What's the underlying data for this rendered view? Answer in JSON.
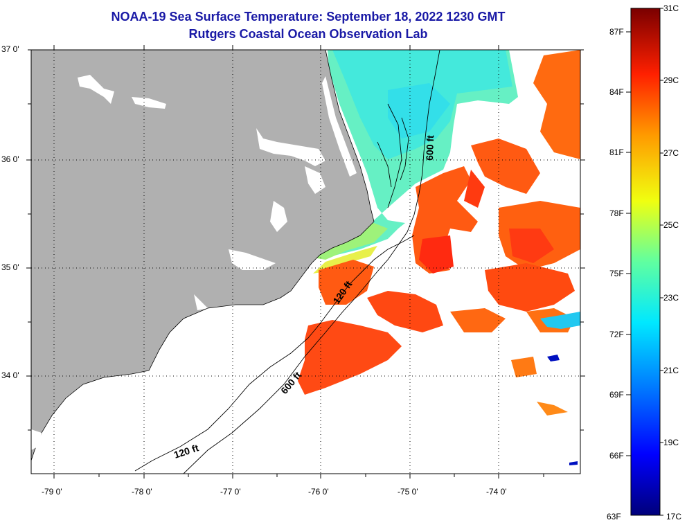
{
  "title": {
    "line1": "NOAA-19 Sea Surface Temperature:  September 18, 2022 1230 GMT",
    "line2": "Rutgers Coastal Ocean Observation Lab"
  },
  "map": {
    "lat_labels": [
      "37 0'",
      "36 0'",
      "35 0'",
      "34 0'"
    ],
    "lon_labels": [
      "-79 0'",
      "-78 0'",
      "-77 0'",
      "-76 0'",
      "-75 0'",
      "-74 0'"
    ],
    "contours": [
      "600 ft",
      "600 ft",
      "120 ft",
      "120 ft"
    ],
    "land_color": "#b0b0b0",
    "cloud_color": "#ffffff"
  },
  "colorbar": {
    "fahrenheit": [
      "87F",
      "84F",
      "81F",
      "78F",
      "75F",
      "72F",
      "69F",
      "66F",
      "63F"
    ],
    "celsius": [
      "31C",
      "29C",
      "27C",
      "25C",
      "23C",
      "21C",
      "19C",
      "17C"
    ]
  }
}
